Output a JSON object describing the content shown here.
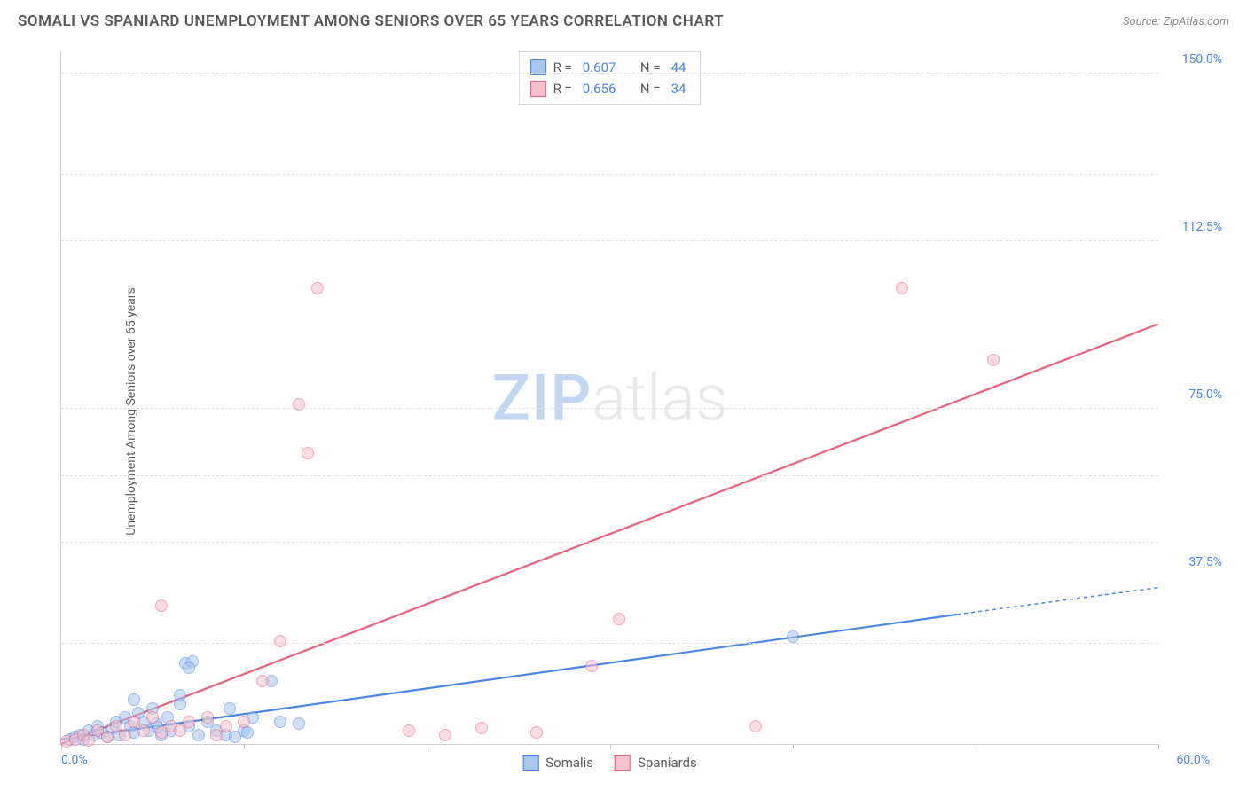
{
  "title": "SOMALI VS SPANIARD UNEMPLOYMENT AMONG SENIORS OVER 65 YEARS CORRELATION CHART",
  "source_prefix": "Source: ",
  "source_name": "ZipAtlas.com",
  "watermark_a": "ZIP",
  "watermark_b": "atlas",
  "y_axis_title": "Unemployment Among Seniors over 65 years",
  "chart": {
    "type": "scatter",
    "background_color": "#ffffff",
    "grid_color": "#e2e2e2",
    "axis_color": "#d0d0d0",
    "tick_label_color": "#4a86e8",
    "xlim": [
      0,
      60
    ],
    "ylim": [
      0,
      155
    ],
    "x_ticks": [
      0,
      10,
      20,
      30,
      40,
      50,
      60
    ],
    "y_gridlines": [
      22.5,
      45,
      60,
      75,
      112.5,
      127.5,
      150
    ],
    "y_tick_labels": [
      {
        "v": 37.5,
        "label": "37.5%"
      },
      {
        "v": 75,
        "label": "75.0%"
      },
      {
        "v": 112.5,
        "label": "112.5%"
      },
      {
        "v": 150,
        "label": "150.0%"
      }
    ],
    "x_min_label": "0.0%",
    "x_max_label": "60.0%",
    "marker_radius": 7,
    "marker_opacity": 0.55,
    "series": [
      {
        "name": "Somalis",
        "color_fill": "#a8c6f0",
        "color_stroke": "#4a86e8",
        "r_label": "R =",
        "r_value": "0.607",
        "n_label": "N =",
        "n_value": "44",
        "trend": {
          "x1": 0,
          "y1": 1,
          "x2": 49,
          "y2": 29,
          "solid": true,
          "dash_ext_x2": 60,
          "dash_ext_y2": 35,
          "width": 2.2
        },
        "points": [
          [
            0.5,
            1.0
          ],
          [
            0.8,
            1.5
          ],
          [
            1.0,
            2.0
          ],
          [
            1.2,
            1.0
          ],
          [
            1.5,
            3.0
          ],
          [
            1.8,
            2.0
          ],
          [
            2.0,
            4.0
          ],
          [
            2.2,
            2.5
          ],
          [
            2.5,
            1.5
          ],
          [
            2.8,
            3.5
          ],
          [
            3.0,
            5.0
          ],
          [
            3.2,
            2.0
          ],
          [
            3.5,
            6.0
          ],
          [
            3.8,
            4.0
          ],
          [
            4.0,
            2.5
          ],
          [
            4.2,
            7.0
          ],
          [
            4.5,
            5.0
          ],
          [
            4.8,
            3.0
          ],
          [
            5.0,
            8.0
          ],
          [
            5.2,
            4.5
          ],
          [
            5.5,
            2.0
          ],
          [
            5.8,
            6.0
          ],
          [
            6.0,
            3.0
          ],
          [
            6.5,
            9.0
          ],
          [
            7.0,
            4.0
          ],
          [
            7.5,
            2.0
          ],
          [
            8.0,
            5.0
          ],
          [
            8.5,
            3.0
          ],
          [
            9.0,
            2.0
          ],
          [
            9.5,
            1.5
          ],
          [
            10.0,
            3.0
          ],
          [
            4.0,
            10.0
          ],
          [
            6.8,
            18.0
          ],
          [
            7.2,
            18.5
          ],
          [
            7.0,
            17.0
          ],
          [
            6.5,
            11.0
          ],
          [
            11.5,
            14.0
          ],
          [
            10.5,
            6.0
          ],
          [
            12.0,
            5.0
          ],
          [
            13.0,
            4.5
          ],
          [
            9.2,
            8.0
          ],
          [
            10.2,
            2.5
          ],
          [
            40.0,
            24.0
          ],
          [
            5.3,
            3.8
          ]
        ]
      },
      {
        "name": "Spaniards",
        "color_fill": "#f6c1cd",
        "color_stroke": "#e8617f",
        "r_label": "R =",
        "r_value": "0.656",
        "n_label": "N =",
        "n_value": "34",
        "trend": {
          "x1": 0,
          "y1": 0,
          "x2": 60,
          "y2": 94,
          "solid": true,
          "width": 2.2
        },
        "points": [
          [
            0.3,
            0.5
          ],
          [
            0.8,
            1.0
          ],
          [
            1.2,
            2.0
          ],
          [
            1.5,
            0.8
          ],
          [
            2.0,
            3.0
          ],
          [
            2.5,
            1.5
          ],
          [
            3.0,
            4.0
          ],
          [
            3.5,
            2.0
          ],
          [
            4.0,
            5.0
          ],
          [
            4.5,
            3.0
          ],
          [
            5.0,
            6.0
          ],
          [
            5.5,
            2.5
          ],
          [
            6.0,
            4.0
          ],
          [
            6.5,
            3.0
          ],
          [
            7.0,
            5.0
          ],
          [
            8.0,
            6.0
          ],
          [
            8.5,
            2.0
          ],
          [
            9.0,
            4.0
          ],
          [
            10.0,
            5.0
          ],
          [
            5.5,
            31.0
          ],
          [
            12.0,
            23.0
          ],
          [
            11.0,
            14.0
          ],
          [
            14.0,
            102.0
          ],
          [
            13.5,
            65.0
          ],
          [
            13.0,
            76.0
          ],
          [
            29.0,
            17.5
          ],
          [
            19.0,
            3.0
          ],
          [
            21.0,
            2.0
          ],
          [
            23.0,
            3.5
          ],
          [
            26.0,
            2.5
          ],
          [
            30.5,
            28.0
          ],
          [
            38.0,
            4.0
          ],
          [
            46.0,
            102.0
          ],
          [
            51.0,
            86.0
          ]
        ]
      }
    ]
  }
}
